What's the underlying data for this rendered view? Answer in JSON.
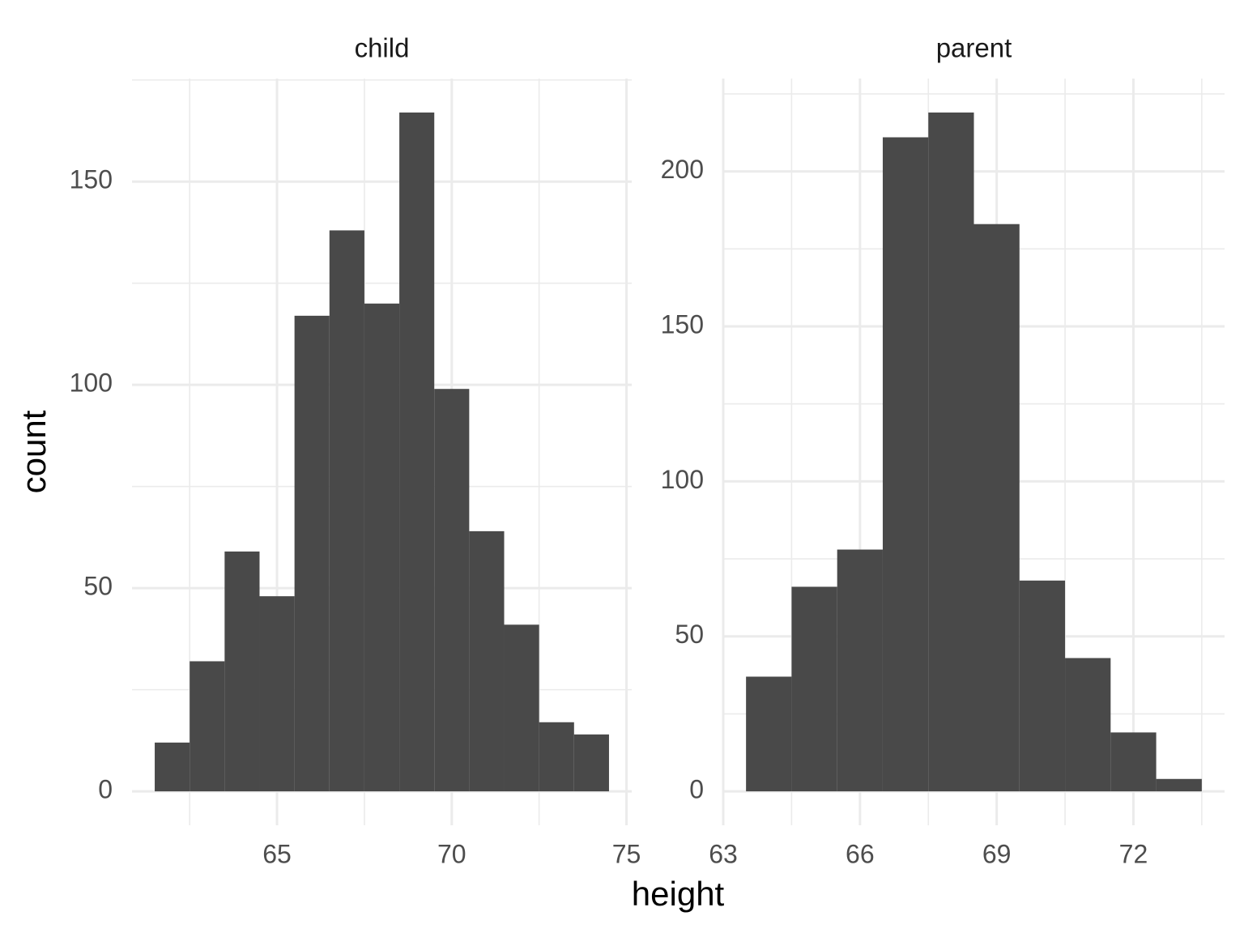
{
  "chart_data": [
    {
      "type": "histogram",
      "title": "child",
      "bins": [
        61.5,
        62.5,
        63.5,
        64.5,
        65.5,
        66.5,
        67.5,
        68.5,
        69.5,
        70.5,
        71.5,
        72.5,
        73.5,
        74.5
      ],
      "values": [
        12,
        32,
        59,
        48,
        117,
        138,
        120,
        167,
        99,
        64,
        41,
        17,
        14
      ],
      "color": "#494949",
      "xlim": [
        60.85,
        75.15
      ],
      "ylim": [
        -8.35,
        175.35
      ],
      "xticks": [
        65,
        70,
        75
      ],
      "yticks": [
        0,
        50,
        100,
        150
      ],
      "minor_xticks": [
        62.5,
        67.5,
        72.5
      ],
      "minor_yticks": [
        25,
        75,
        125,
        175
      ],
      "grid": true
    },
    {
      "type": "histogram",
      "title": "parent",
      "bins": [
        63.5,
        64.5,
        65.5,
        66.5,
        67.5,
        68.5,
        69.5,
        70.5,
        71.5,
        72.5,
        73.5
      ],
      "values": [
        37,
        66,
        78,
        211,
        219,
        183,
        68,
        43,
        19,
        4
      ],
      "color": "#494949",
      "xlim": [
        63,
        74
      ],
      "ylim": [
        -10.95,
        229.95
      ],
      "xticks": [
        63,
        66,
        69,
        72
      ],
      "yticks": [
        0,
        50,
        100,
        150,
        200
      ],
      "minor_xticks": [
        64.5,
        67.5,
        70.5,
        73.5
      ],
      "minor_yticks": [
        25,
        75,
        125,
        175,
        225
      ],
      "grid": true
    }
  ],
  "x_label": "height",
  "y_label": "count"
}
